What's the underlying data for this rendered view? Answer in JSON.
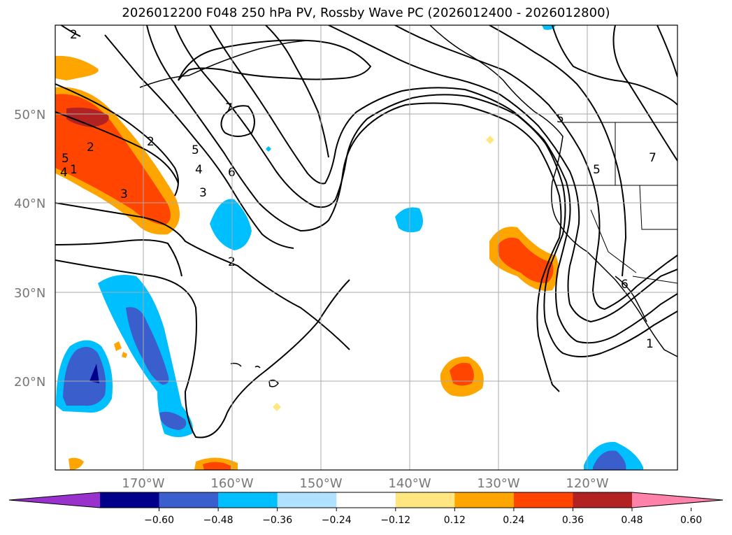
{
  "map": {
    "title": "2026012200 F048 250 hPa PV, Rossby Wave PC (2026012400 - 2026012800)",
    "latitude_labels": [
      "50°N",
      "40°N",
      "30°N",
      "20°N"
    ],
    "longitude_labels": [
      "170°W",
      "160°W",
      "150°W",
      "140°W",
      "130°W",
      "120°W"
    ],
    "region": "North Pacific Ocean and western North America",
    "extent": {
      "lon": [
        -180,
        -110
      ],
      "lat": [
        10,
        60
      ]
    },
    "contour_labels": [
      "2",
      "1",
      "2",
      "7",
      "2",
      "5",
      "4",
      "3",
      "6",
      "3",
      "4",
      "5",
      "2",
      "5",
      "6",
      "1",
      "7",
      "5"
    ]
  },
  "colorbar": {
    "tick_labels": [
      "−0.60",
      "−0.48",
      "−0.36",
      "−0.24",
      "−0.12",
      "0.12",
      "0.24",
      "0.36",
      "0.48",
      "0.60"
    ],
    "colors": [
      "#9932cc",
      "#00008b",
      "#3a5fcd",
      "#00bfff",
      "#b0e2ff",
      "#ffffff",
      "#ffe680",
      "#ffa500",
      "#ff4500",
      "#b22222",
      "#ff82ab"
    ]
  },
  "chart_data": {
    "type": "map",
    "variable": "250 hPa PV, Rossby Wave PC",
    "levels": [
      -0.6,
      -0.48,
      -0.36,
      -0.24,
      -0.12,
      0.12,
      0.24,
      0.36,
      0.48,
      0.6
    ],
    "extend": "both"
  }
}
